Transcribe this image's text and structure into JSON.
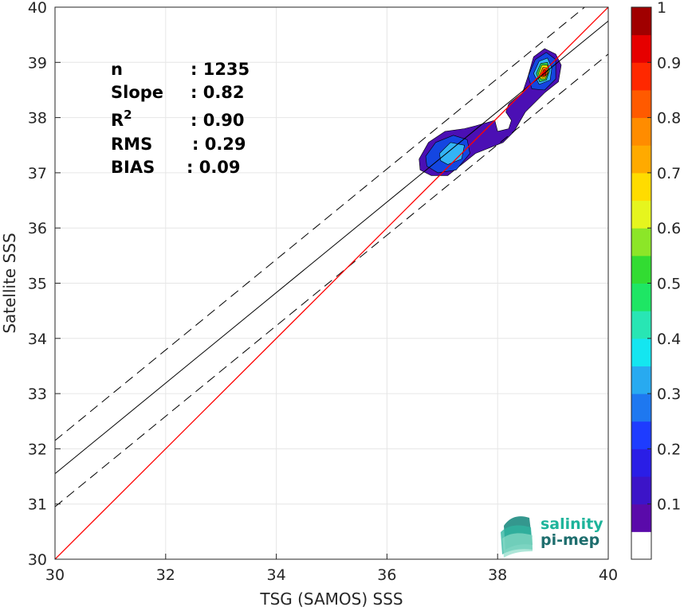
{
  "chart_data": {
    "type": "scatter",
    "subtype": "density-contour",
    "xlabel": "TSG (SAMOS) SSS",
    "ylabel": "Satellite SSS",
    "xlim": [
      30,
      40
    ],
    "ylim": [
      30,
      40
    ],
    "xticks": [
      "30",
      "32",
      "34",
      "36",
      "38",
      "40"
    ],
    "yticks": [
      "30",
      "31",
      "32",
      "33",
      "34",
      "35",
      "36",
      "37",
      "38",
      "39",
      "40"
    ],
    "grid": true,
    "stats": [
      {
        "label": "n",
        "value": ": 1235"
      },
      {
        "label": "Slope",
        "value": ": 0.82"
      },
      {
        "label": "R",
        "sup": "2",
        "value": ": 0.90"
      },
      {
        "label": "RMS",
        "value": ": 0.29"
      },
      {
        "label": "BIAS",
        "value": ": 0.09"
      }
    ],
    "lines": {
      "identity": {
        "color": "#ff0000",
        "x": [
          30,
          40
        ],
        "y": [
          30,
          40
        ]
      },
      "regression": {
        "color": "#000000",
        "x": [
          30,
          40
        ],
        "y": [
          31.55,
          39.75
        ]
      },
      "upper_bound": {
        "color": "#000000",
        "style": "dashed",
        "x": [
          30,
          40
        ],
        "y": [
          32.15,
          40.35
        ]
      },
      "lower_bound": {
        "color": "#000000",
        "style": "dashed",
        "x": [
          30,
          40
        ],
        "y": [
          30.95,
          39.15
        ]
      }
    },
    "density_regions": [
      {
        "level": 0.05,
        "color": "#4b0fb4",
        "points": [
          [
            36.58,
            37.25
          ],
          [
            36.75,
            37.55
          ],
          [
            37.05,
            37.75
          ],
          [
            37.4,
            37.8
          ],
          [
            37.6,
            37.85
          ],
          [
            37.95,
            37.95
          ],
          [
            38.0,
            37.75
          ],
          [
            38.2,
            37.8
          ],
          [
            38.25,
            37.95
          ],
          [
            38.15,
            38.1
          ],
          [
            38.2,
            38.25
          ],
          [
            38.45,
            38.45
          ],
          [
            38.55,
            38.75
          ],
          [
            38.65,
            39.1
          ],
          [
            38.85,
            39.25
          ],
          [
            39.05,
            39.15
          ],
          [
            39.15,
            38.95
          ],
          [
            39.1,
            38.65
          ],
          [
            38.85,
            38.45
          ],
          [
            38.5,
            38.1
          ],
          [
            38.3,
            37.75
          ],
          [
            38.1,
            37.55
          ],
          [
            37.6,
            37.35
          ],
          [
            37.35,
            37.15
          ],
          [
            37.1,
            36.95
          ],
          [
            36.8,
            36.95
          ],
          [
            36.6,
            37.05
          ]
        ]
      },
      {
        "level": 0.2,
        "color": "#1446e1",
        "points": [
          [
            36.7,
            37.3
          ],
          [
            36.88,
            37.55
          ],
          [
            37.2,
            37.68
          ],
          [
            37.45,
            37.6
          ],
          [
            37.5,
            37.35
          ],
          [
            37.25,
            37.05
          ],
          [
            36.92,
            37.0
          ],
          [
            36.72,
            37.12
          ]
        ]
      },
      {
        "level": 0.2,
        "color": "#1446e1",
        "points": [
          [
            38.55,
            38.75
          ],
          [
            38.68,
            39.05
          ],
          [
            38.88,
            39.18
          ],
          [
            39.05,
            39.05
          ],
          [
            39.05,
            38.7
          ],
          [
            38.85,
            38.5
          ],
          [
            38.62,
            38.52
          ]
        ]
      },
      {
        "level": 0.3,
        "color": "#33b4f5",
        "points": [
          [
            36.95,
            37.35
          ],
          [
            37.15,
            37.55
          ],
          [
            37.4,
            37.5
          ],
          [
            37.35,
            37.25
          ],
          [
            37.1,
            37.15
          ],
          [
            36.97,
            37.22
          ]
        ]
      },
      {
        "level": 0.3,
        "color": "#33b4f5",
        "points": [
          [
            38.65,
            38.8
          ],
          [
            38.75,
            39.02
          ],
          [
            38.9,
            39.08
          ],
          [
            38.98,
            38.9
          ],
          [
            38.95,
            38.68
          ],
          [
            38.75,
            38.6
          ]
        ]
      },
      {
        "level": 0.5,
        "color": "#32d250",
        "points": [
          [
            38.7,
            38.8
          ],
          [
            38.78,
            38.98
          ],
          [
            38.9,
            39.0
          ],
          [
            38.94,
            38.85
          ],
          [
            38.88,
            38.68
          ],
          [
            38.76,
            38.65
          ]
        ]
      },
      {
        "level": 0.65,
        "color": "#f0f000",
        "points": [
          [
            38.74,
            38.8
          ],
          [
            38.8,
            38.95
          ],
          [
            38.9,
            38.95
          ],
          [
            38.92,
            38.82
          ],
          [
            38.86,
            38.7
          ],
          [
            38.78,
            38.7
          ]
        ]
      },
      {
        "level": 0.8,
        "color": "#ff7800",
        "points": [
          [
            38.77,
            38.8
          ],
          [
            38.82,
            38.91
          ],
          [
            38.89,
            38.9
          ],
          [
            38.9,
            38.8
          ],
          [
            38.85,
            38.73
          ],
          [
            38.8,
            38.73
          ]
        ]
      },
      {
        "level": 0.95,
        "color": "#dc0000",
        "points": [
          [
            38.8,
            38.8
          ],
          [
            38.84,
            38.87
          ],
          [
            38.88,
            38.85
          ],
          [
            38.87,
            38.77
          ],
          [
            38.82,
            38.75
          ]
        ]
      }
    ],
    "colorbar": {
      "range": [
        0,
        1
      ],
      "ticks": [
        "0.1",
        "0.2",
        "0.3",
        "0.4",
        "0.5",
        "0.6",
        "0.7",
        "0.8",
        "0.9",
        "1"
      ],
      "levels": [
        {
          "from": 0.0,
          "to": 0.05,
          "color": "#ffffff"
        },
        {
          "from": 0.05,
          "to": 0.1,
          "color": "#5a0aaa"
        },
        {
          "from": 0.1,
          "to": 0.15,
          "color": "#3c14c8"
        },
        {
          "from": 0.15,
          "to": 0.2,
          "color": "#2a1ee6"
        },
        {
          "from": 0.2,
          "to": 0.25,
          "color": "#1e3cff"
        },
        {
          "from": 0.25,
          "to": 0.3,
          "color": "#1e78f0"
        },
        {
          "from": 0.3,
          "to": 0.35,
          "color": "#28aaf0"
        },
        {
          "from": 0.35,
          "to": 0.4,
          "color": "#14e6f0"
        },
        {
          "from": 0.4,
          "to": 0.45,
          "color": "#28e6b4"
        },
        {
          "from": 0.45,
          "to": 0.5,
          "color": "#1ee664"
        },
        {
          "from": 0.5,
          "to": 0.55,
          "color": "#32dc32"
        },
        {
          "from": 0.55,
          "to": 0.6,
          "color": "#8ce628"
        },
        {
          "from": 0.6,
          "to": 0.65,
          "color": "#e6f51e"
        },
        {
          "from": 0.65,
          "to": 0.7,
          "color": "#ffdc00"
        },
        {
          "from": 0.7,
          "to": 0.75,
          "color": "#ffaa00"
        },
        {
          "from": 0.75,
          "to": 0.8,
          "color": "#ff8c00"
        },
        {
          "from": 0.8,
          "to": 0.85,
          "color": "#ff5a00"
        },
        {
          "from": 0.85,
          "to": 0.9,
          "color": "#ff2800"
        },
        {
          "from": 0.9,
          "to": 0.95,
          "color": "#e60000"
        },
        {
          "from": 0.95,
          "to": 1.0,
          "color": "#a00000"
        }
      ]
    }
  },
  "logo": {
    "line1": "salinity",
    "line2": "pi-mep",
    "color_dark": "#1e6e6e",
    "color_light": "#1eb49b"
  }
}
